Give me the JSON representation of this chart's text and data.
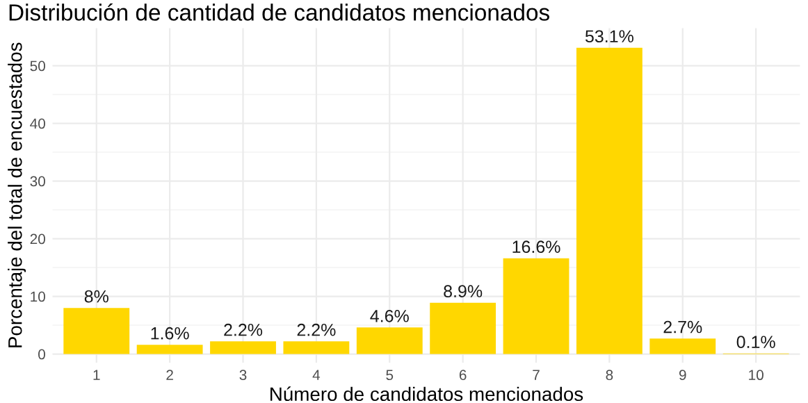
{
  "chart_data": {
    "type": "bar",
    "title": "Distribución de cantidad de candidatos mencionados",
    "xlabel": "Número de candidatos mencionados",
    "ylabel": "Porcentaje del total de encuestados",
    "categories": [
      "1",
      "2",
      "3",
      "4",
      "5",
      "6",
      "7",
      "8",
      "9",
      "10"
    ],
    "values": [
      8,
      1.6,
      2.2,
      2.2,
      4.6,
      8.9,
      16.6,
      53.1,
      2.7,
      0.1
    ],
    "value_labels": [
      "8%",
      "1.6%",
      "2.2%",
      "2.2%",
      "4.6%",
      "8.9%",
      "16.6%",
      "53.1%",
      "2.7%",
      "0.1%"
    ],
    "color": "#ffd700",
    "ylim": [
      -1.5,
      56.5
    ],
    "yticks": [
      0,
      10,
      20,
      30,
      40,
      50
    ],
    "grid": true
  }
}
